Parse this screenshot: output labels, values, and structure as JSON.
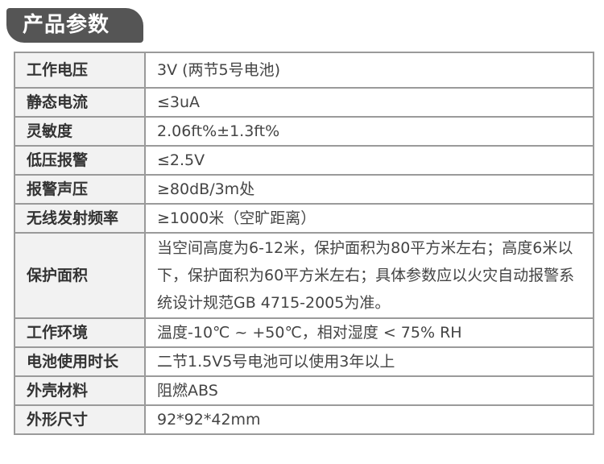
{
  "header": {
    "title": "产品参数"
  },
  "specs": [
    {
      "label": "工作电压",
      "value": "3V (两节5号电池)"
    },
    {
      "label": "静态电流",
      "value": "≤3uA"
    },
    {
      "label": "灵敏度",
      "value": "2.06ft%±1.3ft%"
    },
    {
      "label": "低压报警",
      "value": "≤2.5V"
    },
    {
      "label": "报警声压",
      "value": "≥80dB/3m处"
    },
    {
      "label": "无线发射频率",
      "value": "≥1000米（空旷距离）"
    },
    {
      "label": "保护面积",
      "value": "当空间高度为6-12米，保护面积为80平方米左右；高度6米以下，保护面积为60平方米左右；具体参数应以火灾自动报警系统设计规范GB 4715-2005为准。"
    },
    {
      "label": "工作环境",
      "value": "温度-10℃ ~ +50℃，相对湿度 < 75% RH"
    },
    {
      "label": "电池使用时长",
      "value": "二节1.5V5号电池可以使用3年以上"
    },
    {
      "label": "外壳材料",
      "value": "阻燃ABS"
    },
    {
      "label": "外形尺寸",
      "value": "92*92*42mm"
    }
  ]
}
